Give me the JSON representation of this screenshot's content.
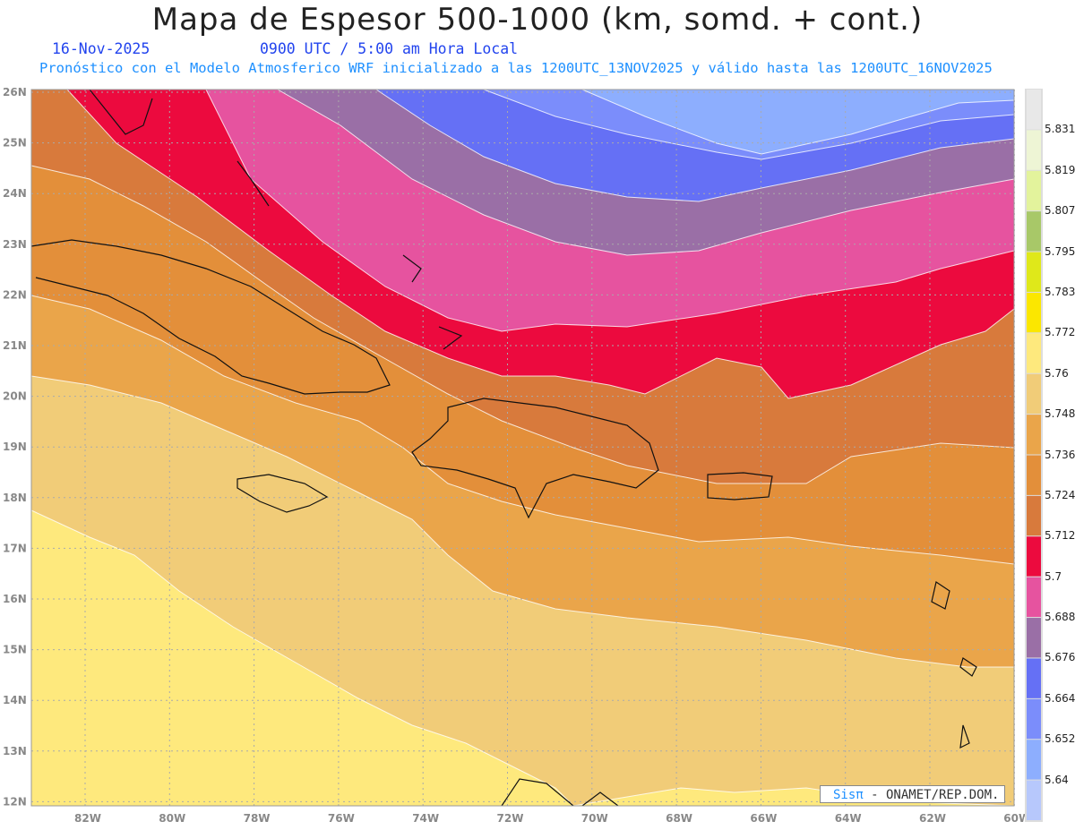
{
  "title": "Mapa de Espesor 500-1000 (km, somd. + cont.)",
  "date": "16-Nov-2025",
  "time": "0900 UTC / 5:00 am Hora Local",
  "description": "Pronóstico con el Modelo Atmosferico WRF inicializado a las 1200UTC_13NOV2025 y válido hasta las  1200UTC_16NOV2025",
  "credit": {
    "logo": "Sisπ",
    "text": " - ONAMET/REP.DOM."
  },
  "axes": {
    "lat_labels": [
      "26N",
      "25N",
      "24N",
      "23N",
      "22N",
      "21N",
      "20N",
      "19N",
      "18N",
      "17N",
      "16N",
      "15N",
      "14N",
      "13N",
      "12N"
    ],
    "lon_labels": [
      "82W",
      "80W",
      "78W",
      "76W",
      "74W",
      "72W",
      "70W",
      "68W",
      "66W",
      "64W",
      "62W",
      "60W"
    ]
  },
  "colorbar": {
    "labels": [
      "5.831",
      "5.819",
      "5.807",
      "5.795",
      "5.783",
      "5.772",
      "5.76",
      "5.748",
      "5.736",
      "5.724",
      "5.712",
      "5.7",
      "5.688",
      "5.676",
      "5.664",
      "5.652",
      "5.64"
    ],
    "colors": [
      "#e8e8e8",
      "#eef5d5",
      "#e3f39c",
      "#a8c868",
      "#dfe81a",
      "#fbe700",
      "#fee97d",
      "#f1cc78",
      "#eaa54a",
      "#e38f3a",
      "#d87a3c",
      "#ec0a3e",
      "#e6539f",
      "#9a6fa6",
      "#6570f5",
      "#7b8dfb",
      "#8daefe",
      "#b7c8fc"
    ]
  },
  "colors": {
    "title_date": "#2244ee",
    "description": "#1e90ff"
  }
}
